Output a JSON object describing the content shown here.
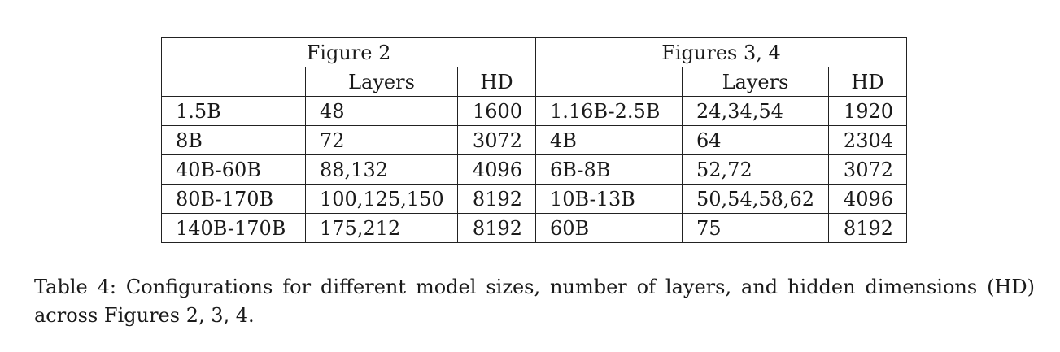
{
  "table": {
    "group_headers": [
      "Figure  2",
      "Figures  3, 4"
    ],
    "sub_headers": {
      "left": [
        "",
        "Layers",
        "HD"
      ],
      "right": [
        "",
        "Layers",
        "HD"
      ]
    },
    "rows": [
      {
        "left": [
          "1.5B",
          "48",
          "1600"
        ],
        "right": [
          "1.16B-2.5B",
          "24,34,54",
          "1920"
        ]
      },
      {
        "left": [
          "8B",
          "72",
          "3072"
        ],
        "right": [
          "4B",
          "64",
          "2304"
        ]
      },
      {
        "left": [
          "40B-60B",
          "88,132",
          "4096"
        ],
        "right": [
          "6B-8B",
          "52,72",
          "3072"
        ]
      },
      {
        "left": [
          "80B-170B",
          "100,125,150",
          "8192"
        ],
        "right": [
          "10B-13B",
          "50,54,58,62",
          "4096"
        ]
      },
      {
        "left": [
          "140B-170B",
          "175,212",
          "8192"
        ],
        "right": [
          "60B",
          "75",
          "8192"
        ]
      }
    ]
  },
  "caption": {
    "text": "Table 4:  Configurations for different model sizes, number of layers, and hidden dimensions (HD) across Figures 2, 3, 4."
  }
}
